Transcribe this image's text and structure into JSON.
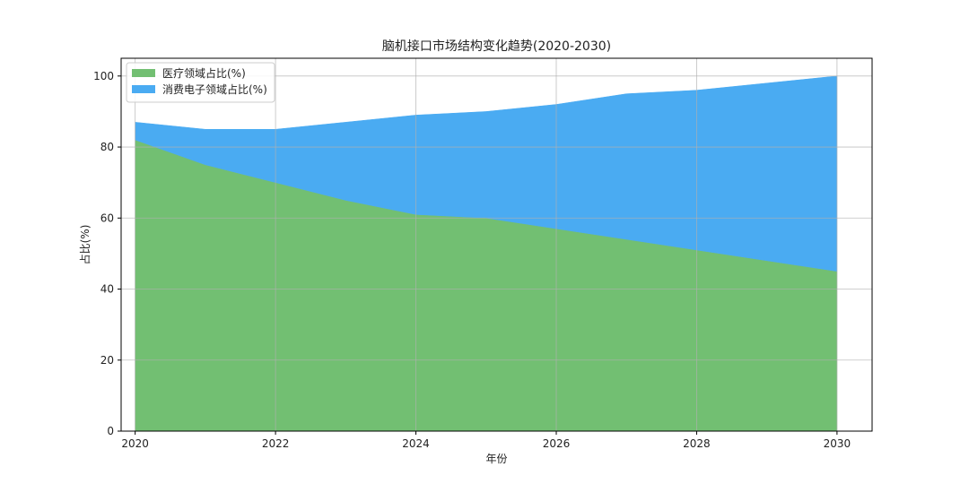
{
  "chart_data": {
    "type": "area",
    "stacked": true,
    "title": "脑机接口市场结构变化趋势(2020-2030)",
    "xlabel": "年份",
    "ylabel": "占比(%)",
    "x": [
      2020,
      2021,
      2022,
      2023,
      2024,
      2025,
      2026,
      2027,
      2028,
      2029,
      2030
    ],
    "xlim": [
      2019.8,
      2030.5
    ],
    "ylim": [
      0,
      105
    ],
    "xticks": [
      2020,
      2022,
      2024,
      2026,
      2028,
      2030
    ],
    "yticks": [
      0,
      20,
      40,
      60,
      80,
      100
    ],
    "grid": true,
    "legend_position": "top-left",
    "series": [
      {
        "name": "医疗领域占比(%)",
        "color": "#72bf72",
        "values": [
          82,
          75,
          70,
          65,
          61,
          60,
          57,
          54,
          51,
          48,
          45
        ]
      },
      {
        "name": "消费电子领域占比(%)",
        "color": "#4aabf2",
        "values": [
          5,
          10,
          15,
          22,
          28,
          30,
          35,
          41,
          45,
          50,
          55
        ]
      }
    ]
  }
}
